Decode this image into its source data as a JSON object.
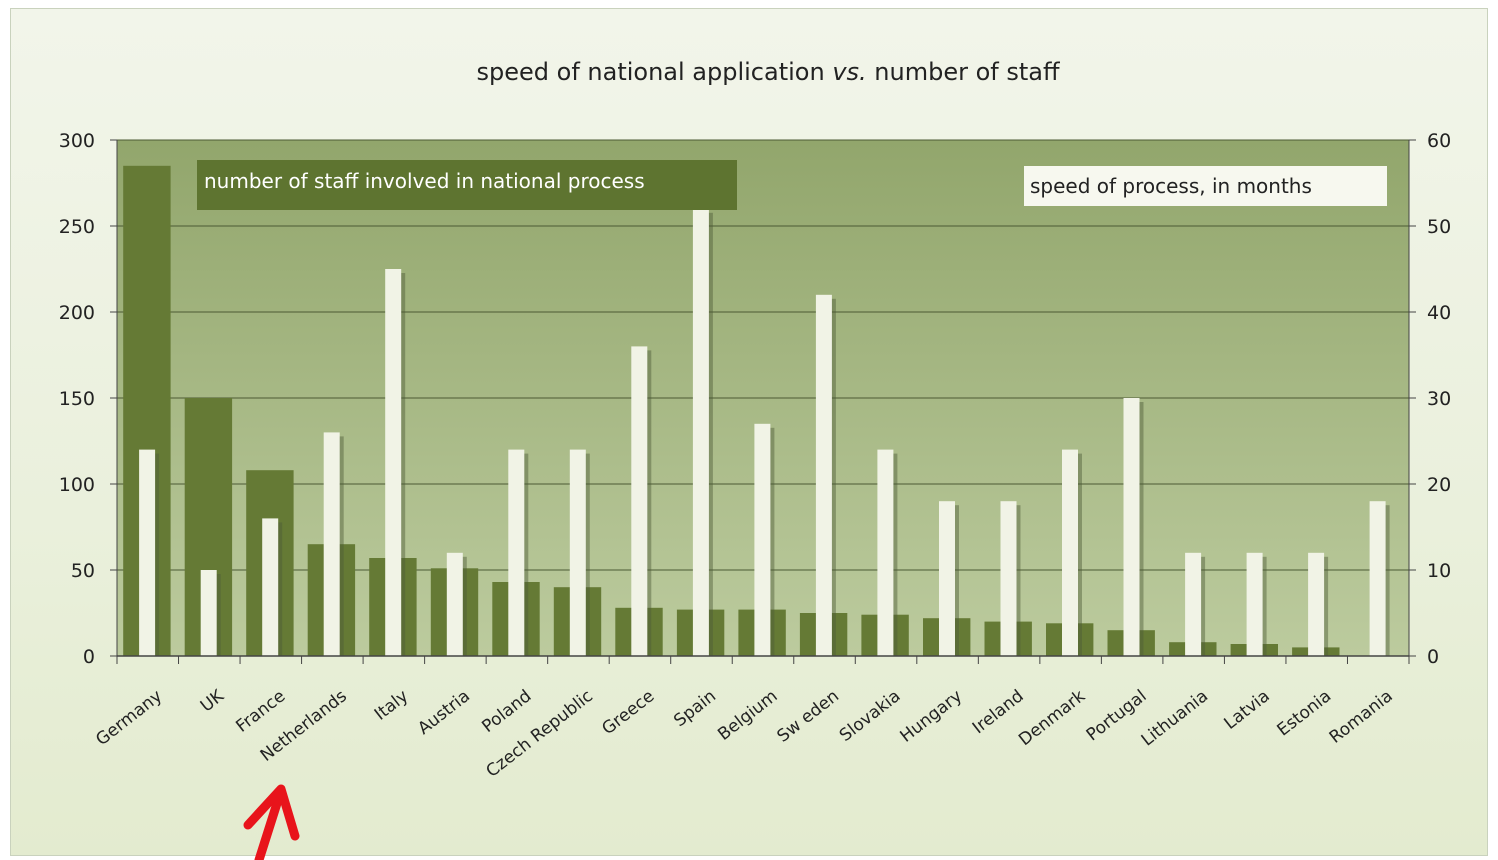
{
  "colors": {
    "staff_bar": "#657a35",
    "speed_bar": "#f1f3e6",
    "plot_top": "#92a66c",
    "plot_bottom": "#b9c89a",
    "arrow": "#e8141b"
  },
  "chart_data": {
    "type": "bar",
    "title_parts": [
      "speed of national application ",
      "vs.",
      " number of staff"
    ],
    "categories": [
      "Germany",
      "UK",
      "France",
      "Netherlands",
      "Italy",
      "Austria",
      "Poland",
      "Czech Republic",
      "Greece",
      "Spain",
      "Belgium",
      "Sw eden",
      "Slovakia",
      "Hungary",
      "Ireland",
      "Denmark",
      "Portugal",
      "Lithuania",
      "Latvia",
      "Estonia",
      "Romania"
    ],
    "series": [
      {
        "name": "number of staff involved in national process",
        "axis": "left",
        "values": [
          285,
          150,
          108,
          65,
          57,
          51,
          43,
          40,
          28,
          27,
          27,
          25,
          24,
          22,
          20,
          19,
          15,
          8,
          7,
          5,
          0
        ]
      },
      {
        "name": "speed of process, in months",
        "axis": "right",
        "values": [
          24,
          10,
          16,
          26,
          45,
          12,
          24,
          24,
          36,
          52,
          27,
          42,
          24,
          18,
          18,
          24,
          30,
          12,
          12,
          12,
          18
        ]
      }
    ],
    "y_left": {
      "ylim": [
        0,
        300
      ],
      "ticks": [
        "0",
        "50",
        "100",
        "150",
        "200",
        "250",
        "300"
      ]
    },
    "y_right": {
      "ylim": [
        0,
        60
      ],
      "ticks": [
        "0",
        "10",
        "20",
        "30",
        "40",
        "50",
        "60"
      ]
    },
    "grid": true,
    "annotation": "red arrow pointing to Netherlands"
  }
}
